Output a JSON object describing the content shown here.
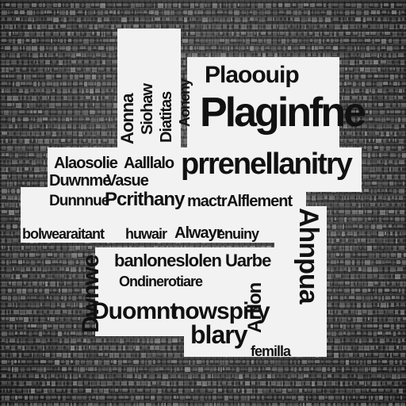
{
  "collage": {
    "title_main": "Plaginfne",
    "title_top": "Plaoouip",
    "title_wide": "prrenellanitry",
    "line_a1": "Alaosolie",
    "line_a2": "Aalllalo",
    "line_b1": "Duwnme",
    "line_b2": "Vasue",
    "line_c1": "Dunnnue",
    "line_c2": "Pcrithany",
    "line_c3": "mactr",
    "line_c4": "Alflement",
    "line_d1": "bolwearaitant",
    "line_d2": "huwair",
    "line_d3": "Alwayr",
    "line_d4": "enuiny",
    "line_e1": "banloneslolen",
    "line_e2": "Uarbe",
    "line_e3": "Ondinerotiare",
    "line_f1": "Duomnt",
    "line_f2": "nowspiry",
    "line_g1": "blary",
    "line_g2": "femilla",
    "vert_1": "Aonna",
    "vert_2": "Siohaw",
    "vert_3": "Diatitas",
    "vert_4": "Aoneny",
    "vert_5": "Dwnwe",
    "vert_6": "Arllon",
    "vert_7": "Ahnpua"
  }
}
